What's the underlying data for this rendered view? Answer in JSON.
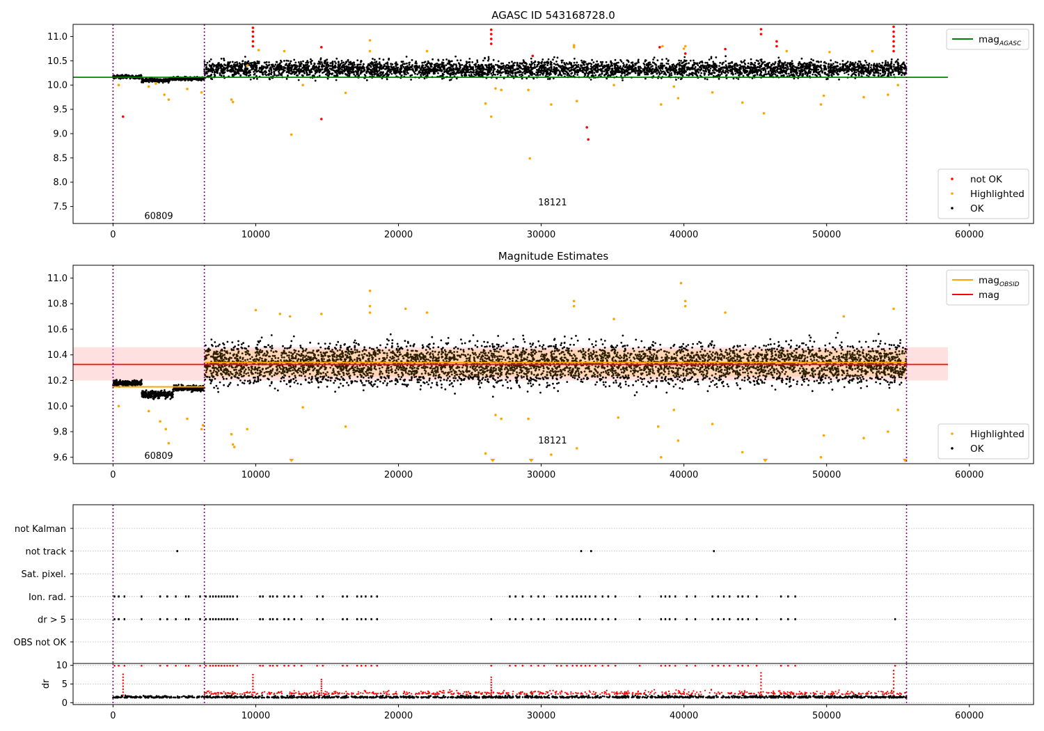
{
  "chart_data": [
    {
      "type": "scatter",
      "panel": "top",
      "title": "AGASC ID 543168728.0",
      "xlabel": "",
      "ylabel": "",
      "xlim": [
        -2800,
        64500
      ],
      "ylim": [
        7.15,
        11.25
      ],
      "xticks": [
        0,
        10000,
        20000,
        30000,
        40000,
        50000,
        60000
      ],
      "yticks": [
        7.5,
        8.0,
        8.5,
        9.0,
        9.5,
        10.0,
        10.5,
        11.0
      ],
      "tick_labels_x": [
        "0",
        "10000",
        "20000",
        "30000",
        "40000",
        "50000",
        "60000"
      ],
      "tick_labels_y": [
        "7.5",
        "8.0",
        "8.5",
        "9.0",
        "9.5",
        "10.0",
        "10.5",
        "11.0"
      ],
      "grid": false,
      "obs_boundaries": [
        0,
        6400,
        55600
      ],
      "obs_labels": [
        {
          "text": "60809",
          "x": 3200,
          "y": 7.3
        },
        {
          "text": "18121",
          "x": 30800,
          "y": 7.58
        }
      ],
      "lines": [
        {
          "name": "mag",
          "sub": "AGASC",
          "color": "#008000",
          "x": [
            -2800,
            58500
          ],
          "y": [
            10.16,
            10.16
          ]
        }
      ],
      "segments": [
        {
          "x0": 0,
          "x1": 2000,
          "center": 10.17,
          "spread": 0.06
        },
        {
          "x0": 2000,
          "x1": 4000,
          "center": 10.1,
          "spread": 0.07
        },
        {
          "x0": 4000,
          "x1": 6400,
          "center": 10.13,
          "spread": 0.06
        },
        {
          "x0": 6400,
          "x1": 55600,
          "center": 10.33,
          "spread": 0.3
        }
      ],
      "series": [
        {
          "name": "not OK",
          "color": "#ff0000",
          "points": [
            [
              700,
              9.35
            ],
            [
              14600,
              9.3
            ],
            [
              9800,
              11.18
            ],
            [
              9800,
              11.1
            ],
            [
              9800,
              11.0
            ],
            [
              9800,
              10.9
            ],
            [
              9800,
              10.8
            ],
            [
              26500,
              11.14
            ],
            [
              26500,
              11.05
            ],
            [
              26500,
              10.95
            ],
            [
              26500,
              10.85
            ],
            [
              29400,
              10.6
            ],
            [
              33200,
              9.13
            ],
            [
              33300,
              8.88
            ],
            [
              38300,
              10.78
            ],
            [
              40100,
              10.65
            ],
            [
              42900,
              10.74
            ],
            [
              45400,
              11.15
            ],
            [
              45400,
              11.05
            ],
            [
              46500,
              10.9
            ],
            [
              46500,
              10.8
            ],
            [
              54700,
              11.2
            ],
            [
              54700,
              11.1
            ],
            [
              54700,
              11.0
            ],
            [
              54700,
              10.9
            ],
            [
              54700,
              10.8
            ],
            [
              54700,
              10.7
            ],
            [
              14600,
              10.78
            ]
          ]
        },
        {
          "name": "Highlighted",
          "color": "#ffa500",
          "points": [
            [
              400,
              10.0
            ],
            [
              2500,
              9.97
            ],
            [
              3000,
              10.03
            ],
            [
              3600,
              9.8
            ],
            [
              3900,
              9.7
            ],
            [
              5200,
              9.92
            ],
            [
              6200,
              9.85
            ],
            [
              8300,
              9.7
            ],
            [
              8400,
              9.65
            ],
            [
              9400,
              10.4
            ],
            [
              12500,
              8.98
            ],
            [
              13300,
              10.0
            ],
            [
              16300,
              9.84
            ],
            [
              18000,
              10.92
            ],
            [
              26100,
              9.62
            ],
            [
              26500,
              9.35
            ],
            [
              26800,
              9.93
            ],
            [
              27200,
              9.9
            ],
            [
              29200,
              8.49
            ],
            [
              29100,
              9.9
            ],
            [
              30700,
              9.6
            ],
            [
              32300,
              10.82
            ],
            [
              32500,
              9.67
            ],
            [
              35100,
              10.0
            ],
            [
              38400,
              9.6
            ],
            [
              38500,
              10.8
            ],
            [
              39300,
              9.97
            ],
            [
              39600,
              9.73
            ],
            [
              40100,
              10.8
            ],
            [
              42000,
              9.85
            ],
            [
              44100,
              9.64
            ],
            [
              45600,
              9.42
            ],
            [
              49600,
              9.6
            ],
            [
              49800,
              9.78
            ],
            [
              52600,
              9.75
            ],
            [
              54300,
              9.8
            ],
            [
              55000,
              10.0
            ],
            [
              18000,
              10.7
            ],
            [
              22000,
              10.7
            ],
            [
              10200,
              10.72
            ],
            [
              12000,
              10.7
            ],
            [
              32300,
              10.78
            ],
            [
              40000,
              10.75
            ],
            [
              47200,
              10.7
            ],
            [
              50200,
              10.68
            ],
            [
              53200,
              10.7
            ]
          ]
        }
      ],
      "legend_top": {
        "placement": "upper right",
        "entries": [
          {
            "label": "mag",
            "sub": "AGASC",
            "color": "#008000"
          }
        ]
      },
      "legend_bottom": {
        "placement": "lower right",
        "entries": [
          {
            "label": "not OK",
            "color": "#ff0000"
          },
          {
            "label": "Highlighted",
            "color": "#ffa500"
          },
          {
            "label": "OK",
            "color": "#000000"
          }
        ]
      }
    },
    {
      "type": "scatter",
      "panel": "middle",
      "title": "Magnitude Estimates",
      "xlabel": "",
      "ylabel": "",
      "xlim": [
        -2800,
        64500
      ],
      "ylim": [
        9.55,
        11.1
      ],
      "xticks": [
        0,
        10000,
        20000,
        30000,
        40000,
        50000,
        60000
      ],
      "yticks": [
        9.6,
        9.8,
        10.0,
        10.2,
        10.4,
        10.6,
        10.8,
        11.0
      ],
      "tick_labels_x": [
        "0",
        "10000",
        "20000",
        "30000",
        "40000",
        "50000",
        "60000"
      ],
      "tick_labels_y": [
        "9.6",
        "9.8",
        "10.0",
        "10.2",
        "10.4",
        "10.6",
        "10.8",
        "11.0"
      ],
      "grid": false,
      "obs_boundaries": [
        0,
        6400,
        55600
      ],
      "obs_labels": [
        {
          "text": "60809",
          "x": 3200,
          "y": 9.61
        },
        {
          "text": "18121",
          "x": 30800,
          "y": 9.73
        }
      ],
      "band": {
        "color": "#ff0000",
        "opacity": 0.12,
        "x0": -2800,
        "x1": 58500,
        "y0": 10.2,
        "y1": 10.46
      },
      "inner_bands": [
        {
          "x0": 6400,
          "x1": 55600,
          "y0": 10.23,
          "y1": 10.44,
          "color": "#ffa500",
          "opacity": 0.18
        }
      ],
      "lines": [
        {
          "name": "mag",
          "sub": "OBSID",
          "color": "#ffa500",
          "segments": [
            [
              0,
              6400,
              10.15
            ],
            [
              6400,
              55600,
              10.34
            ]
          ]
        },
        {
          "name": "mag",
          "color": "#ff0000",
          "x": [
            -2800,
            58500
          ],
          "y": [
            10.325,
            10.325
          ]
        }
      ],
      "segments": [
        {
          "x0": 0,
          "x1": 2000,
          "center": 10.18,
          "spread": 0.04
        },
        {
          "x0": 2000,
          "x1": 4200,
          "center": 10.09,
          "spread": 0.05
        },
        {
          "x0": 4200,
          "x1": 6400,
          "center": 10.14,
          "spread": 0.04
        },
        {
          "x0": 6400,
          "x1": 55600,
          "center": 10.33,
          "spread": 0.28
        }
      ],
      "series": [
        {
          "name": "Highlighted",
          "color": "#ffa500",
          "points": [
            [
              400,
              10.0
            ],
            [
              2500,
              9.96
            ],
            [
              3300,
              9.88
            ],
            [
              3700,
              9.82
            ],
            [
              3900,
              9.71
            ],
            [
              5200,
              9.9
            ],
            [
              6200,
              9.82
            ],
            [
              6300,
              9.85
            ],
            [
              8300,
              9.78
            ],
            [
              8400,
              9.7
            ],
            [
              8500,
              9.68
            ],
            [
              9400,
              9.82
            ],
            [
              13300,
              9.99
            ],
            [
              16300,
              9.84
            ],
            [
              18000,
              10.9
            ],
            [
              18000,
              10.78
            ],
            [
              18000,
              10.73
            ],
            [
              20500,
              10.76
            ],
            [
              22000,
              10.73
            ],
            [
              26100,
              9.63
            ],
            [
              26800,
              9.93
            ],
            [
              27200,
              9.9
            ],
            [
              29100,
              9.9
            ],
            [
              30700,
              9.62
            ],
            [
              32300,
              10.82
            ],
            [
              32300,
              10.78
            ],
            [
              32500,
              9.67
            ],
            [
              35100,
              10.68
            ],
            [
              35400,
              9.91
            ],
            [
              38400,
              9.6
            ],
            [
              38200,
              9.84
            ],
            [
              39300,
              9.97
            ],
            [
              39600,
              9.73
            ],
            [
              39800,
              10.96
            ],
            [
              40100,
              10.82
            ],
            [
              40100,
              10.78
            ],
            [
              42000,
              9.86
            ],
            [
              44100,
              9.64
            ],
            [
              49600,
              9.6
            ],
            [
              49800,
              9.77
            ],
            [
              52600,
              9.75
            ],
            [
              54300,
              9.8
            ],
            [
              54700,
              10.76
            ],
            [
              55000,
              9.97
            ],
            [
              10000,
              10.75
            ],
            [
              11700,
              10.72
            ],
            [
              12400,
              10.7
            ],
            [
              14600,
              10.72
            ],
            [
              42900,
              10.73
            ],
            [
              51200,
              10.7
            ]
          ]
        }
      ],
      "markers_bottom": [
        12500,
        26600,
        29300,
        45700,
        55500
      ],
      "legend_top": {
        "placement": "upper right",
        "entries": [
          {
            "label": "mag",
            "sub": "OBSID",
            "color": "#ffa500"
          },
          {
            "label": "mag",
            "color": "#ff0000"
          }
        ]
      },
      "legend_bottom": {
        "placement": "lower right",
        "entries": [
          {
            "label": "Highlighted",
            "color": "#ffa500"
          },
          {
            "label": "OK",
            "color": "#000000"
          }
        ]
      }
    },
    {
      "type": "scatter",
      "panel": "flags",
      "title": "",
      "xlabel": "",
      "ylabel": "",
      "xlim": [
        -2800,
        64500
      ],
      "categories": [
        "not Kalman",
        "not track",
        "Sat. pixel.",
        "Ion. rad.",
        "dr > 5",
        "OBS not OK"
      ],
      "obs_boundaries": [
        0,
        6400,
        55600
      ],
      "grid": true,
      "series": [
        {
          "name": "not track",
          "x": [
            4500,
            32800,
            33500,
            42100
          ]
        },
        {
          "name": "Ion. rad.",
          "x": [
            100,
            400,
            800,
            2000,
            3300,
            3800,
            4400,
            5100,
            5300,
            6100,
            6500,
            6800,
            7000,
            7200,
            7400,
            7600,
            7800,
            8000,
            8200,
            8400,
            8700,
            10300,
            10500,
            11000,
            11200,
            11500,
            12000,
            12300,
            12700,
            13200,
            14300,
            14700,
            16100,
            16400,
            17100,
            17400,
            17700,
            18100,
            18500,
            27800,
            28200,
            28700,
            29300,
            29800,
            30200,
            31100,
            31400,
            31800,
            32200,
            32500,
            32800,
            33100,
            33400,
            33800,
            34300,
            34700,
            35200,
            36900,
            38400,
            38700,
            39000,
            39400,
            40200,
            40800,
            42000,
            42400,
            42800,
            43200,
            43800,
            44100,
            44500,
            45100,
            46800,
            47300,
            47800
          ]
        },
        {
          "name": "dr > 5",
          "x": [
            100,
            400,
            800,
            2000,
            3300,
            3800,
            4400,
            5100,
            5300,
            6100,
            6500,
            6800,
            7000,
            7200,
            7400,
            7600,
            7800,
            8000,
            8200,
            8400,
            8700,
            10300,
            10500,
            11000,
            11200,
            11500,
            12000,
            12300,
            12700,
            13200,
            14300,
            14700,
            16100,
            16400,
            17100,
            17400,
            17700,
            18100,
            18500,
            26500,
            27800,
            28200,
            28700,
            29300,
            29800,
            30200,
            31100,
            31400,
            31800,
            32200,
            32500,
            32800,
            33100,
            33400,
            33800,
            34300,
            34700,
            35200,
            36900,
            38400,
            38700,
            39000,
            39400,
            40200,
            40800,
            42000,
            42400,
            42800,
            43200,
            43800,
            44100,
            44500,
            45100,
            46800,
            47300,
            47800,
            54800
          ]
        }
      ]
    },
    {
      "type": "scatter",
      "panel": "dr",
      "title": "",
      "xlabel": "",
      "ylabel": "dr",
      "xlim": [
        -2800,
        64500
      ],
      "ylim": [
        -0.5,
        10.5
      ],
      "xticks": [
        0,
        10000,
        20000,
        30000,
        40000,
        50000,
        60000
      ],
      "yticks": [
        0,
        5,
        10
      ],
      "tick_labels_x": [
        "0",
        "10000",
        "20000",
        "30000",
        "40000",
        "50000",
        "60000"
      ],
      "tick_labels_y": [
        "0",
        "5",
        "10"
      ],
      "grid": true,
      "obs_boundaries": [
        0,
        6400,
        55600
      ],
      "spikes": [
        {
          "x": 9800,
          "y": 7.5
        },
        {
          "x": 14600,
          "y": 6.2
        },
        {
          "x": 26500,
          "y": 6.8
        },
        {
          "x": 45400,
          "y": 8.0
        },
        {
          "x": 54700,
          "y": 8.6
        },
        {
          "x": 700,
          "y": 7.6
        }
      ]
    }
  ]
}
